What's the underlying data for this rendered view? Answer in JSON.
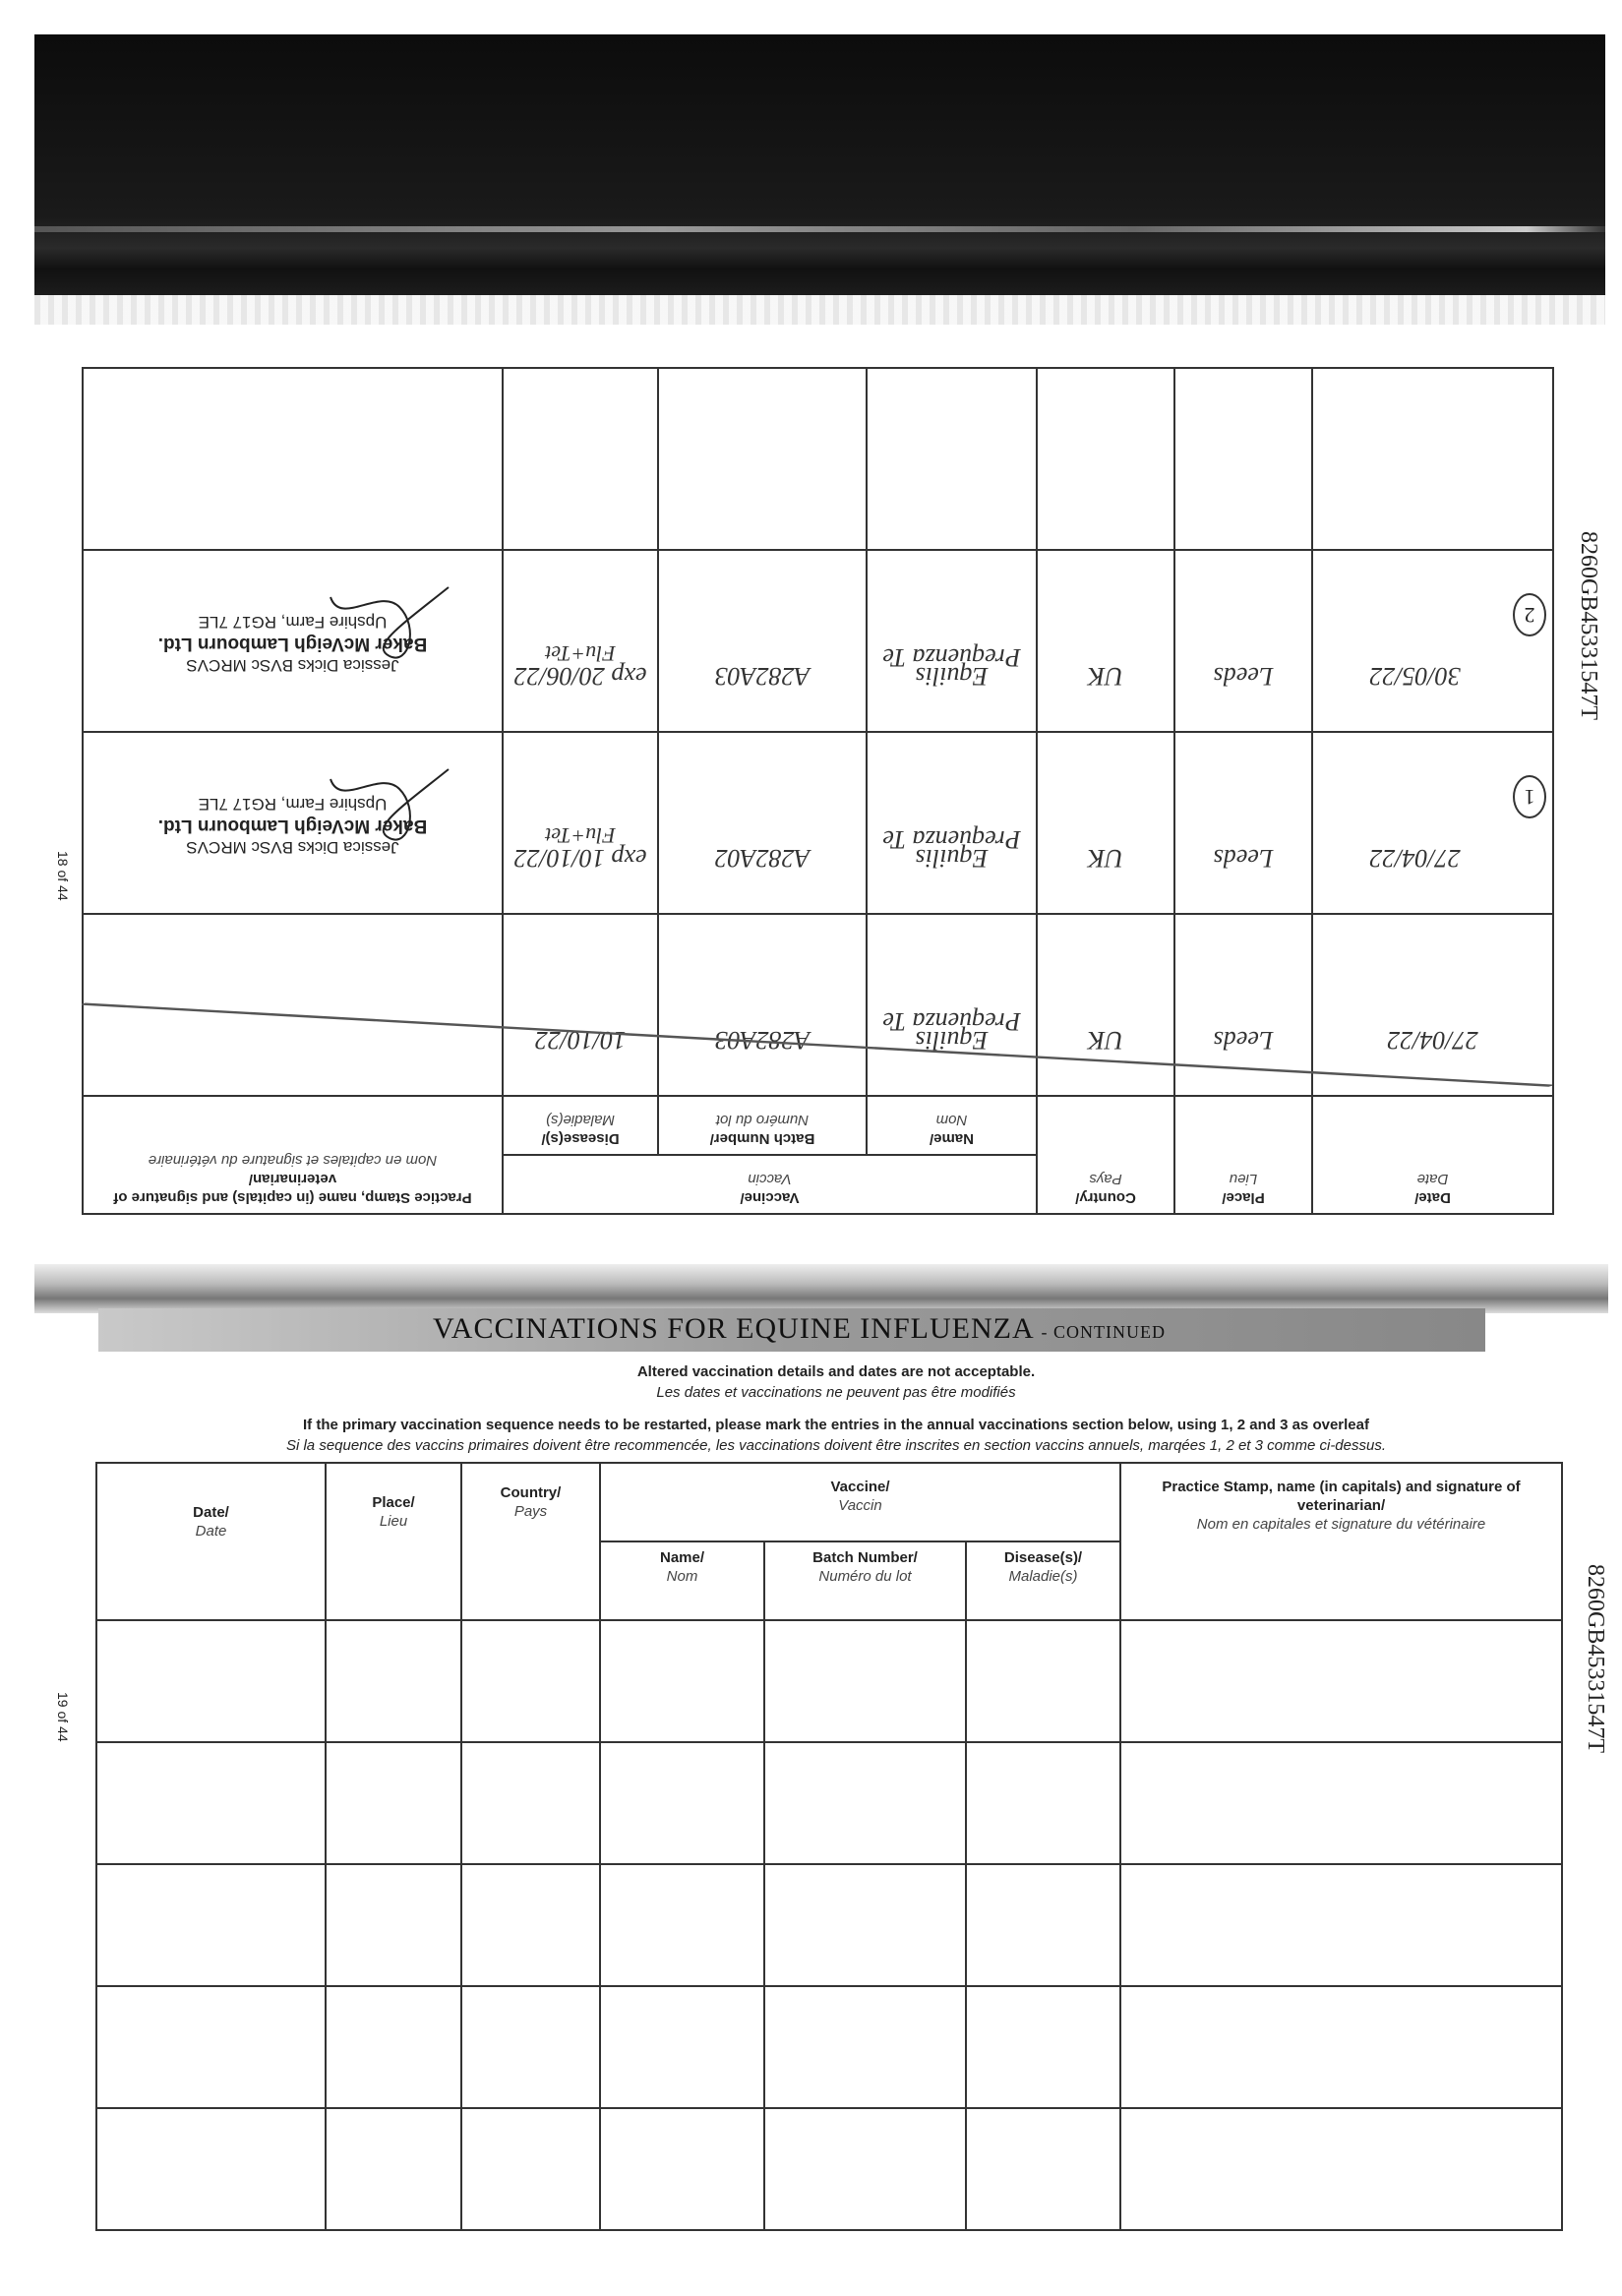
{
  "document_code": "8260GB45331547T",
  "pages": {
    "left": "18 of 44",
    "right": "19 of 44"
  },
  "section_title": "VACCINATIONS FOR EQUINE INFLUENZA",
  "section_suffix": "- CONTINUED",
  "notes": {
    "altered_en": "Altered vaccination details and dates are not acceptable.",
    "altered_fr": "Les dates et vaccinations ne peuvent pas être modifiés",
    "restart_en": "If the primary vaccination sequence needs to be restarted, please mark the entries in the annual vaccinations section below, using 1, 2 and 3 as overleaf",
    "restart_fr": "Si la sequence des vaccins primaires doivent être recommencée, les vaccinations doivent être inscrites en section vaccins annuels, marqées 1, 2 et 3 comme ci-dessus."
  },
  "headers": {
    "date": "Date/",
    "date_fr": "Date",
    "place": "Place/",
    "place_fr": "Lieu",
    "country": "Country/",
    "country_fr": "Pays",
    "vaccine": "Vaccine/",
    "vaccine_fr": "Vaccin",
    "name": "Name/",
    "name_fr": "Nom",
    "batch": "Batch Number/",
    "batch_fr": "Numéro du lot",
    "disease": "Disease(s)/",
    "disease_fr": "Maladie(s)",
    "stamp": "Practice Stamp, name (in capitals) and signature of veterinarian/",
    "stamp_fr": "Nom en capitales et signature du vétérinaire"
  },
  "page18_entries": [
    {
      "marker": "",
      "date": "27/04/22",
      "place": "Leeds",
      "country": "UK",
      "name": "Equilis Prequenza Te",
      "batch": "A282A03",
      "disease_exp": "10/10/22",
      "disease": "",
      "struck_out": true
    },
    {
      "marker": "1",
      "date": "27/04/22",
      "place": "Leeds",
      "country": "UK",
      "name": "Equilis Prequenza Te",
      "batch": "A282A02",
      "disease_exp": "exp 10/10/22",
      "disease": "Flu+Tet",
      "struck_out": false,
      "stamp": {
        "vet": "Jessica Dicks BVSc MRCVS",
        "practice": "Baker McVeigh Lambourn Ltd.",
        "address": "Upshire Farm, RG17 7LE"
      }
    },
    {
      "marker": "2",
      "date": "30/05/22",
      "place": "Leeds",
      "country": "UK",
      "name": "Equilis Prequenza Te",
      "batch": "A282A03",
      "disease_exp": "exp 20/06/22",
      "disease": "Flu+Tet",
      "struck_out": false,
      "stamp": {
        "vet": "Jessica Dicks BVSc MRCVS",
        "practice": "Baker McVeigh Lambourn Ltd.",
        "address": "Upshire Farm, RG17 7LE"
      }
    }
  ],
  "colors": {
    "ink": "#333333",
    "band": "#111111",
    "banner": "#9a9a9a"
  }
}
